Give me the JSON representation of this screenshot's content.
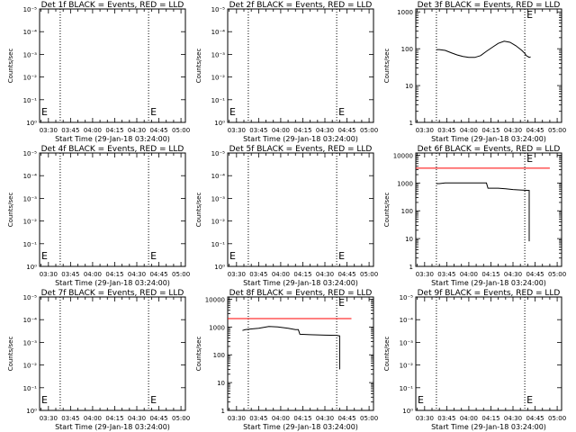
{
  "colors": {
    "events": "#000000",
    "lld": "#ff0000",
    "background": "#ffffff"
  },
  "chart_data": [
    {
      "type": "line",
      "title": "Det 1f BLACK = Events, RED = LLD",
      "xlabel": "Start Time (29-Jan-18 03:24:00)",
      "ylabel": "Counts/sec",
      "scale": "exp",
      "ytick_labels": [
        "10⁰",
        "10⁻¹",
        "10⁻²",
        "10⁻³",
        "10⁻⁴",
        "10⁻⁵"
      ],
      "xtick_labels": [
        "03:30",
        "03:45",
        "04:00",
        "04:15",
        "04:30",
        "04:45",
        "05:00"
      ],
      "dotted_x": [
        "03:38",
        "04:38"
      ],
      "markers": [
        {
          "x": "03:24",
          "label": "E"
        },
        {
          "x": "04:38",
          "label": "E"
        }
      ],
      "events": [],
      "lld": []
    },
    {
      "type": "line",
      "title": "Det 2f BLACK = Events, RED = LLD",
      "xlabel": "Start Time (29-Jan-18 03:24:00)",
      "ylabel": "Counts/sec",
      "scale": "exp",
      "ytick_labels": [
        "10⁰",
        "10⁻¹",
        "10⁻²",
        "10⁻³",
        "10⁻⁴",
        "10⁻⁵"
      ],
      "xtick_labels": [
        "03:30",
        "03:45",
        "04:00",
        "04:15",
        "04:30",
        "04:45",
        "05:00"
      ],
      "dotted_x": [
        "03:38",
        "04:38"
      ],
      "markers": [
        {
          "x": "03:24",
          "label": "E"
        },
        {
          "x": "04:38",
          "label": "E"
        }
      ],
      "events": [],
      "lld": []
    },
    {
      "type": "line",
      "title": "Det 3f BLACK = Events, RED = LLD",
      "xlabel": "Start Time (29-Jan-18 03:24:00)",
      "ylabel": "Counts/sec",
      "scale": "log",
      "ylim": [
        1,
        1200
      ],
      "ytick_values": [
        1,
        10,
        100,
        1000
      ],
      "ytick_labels": [
        "1",
        "10",
        "100",
        "1000"
      ],
      "xtick_labels": [
        "03:30",
        "03:45",
        "04:00",
        "04:15",
        "04:30",
        "04:45",
        "05:00"
      ],
      "dotted_x": [
        "03:38",
        "04:38"
      ],
      "markers": [
        {
          "x": "04:38",
          "label": "E"
        }
      ],
      "events": [
        [
          "03:38",
          95
        ],
        [
          "03:40",
          95
        ],
        [
          "03:44",
          90
        ],
        [
          "03:48",
          78
        ],
        [
          "03:52",
          68
        ],
        [
          "03:56",
          62
        ],
        [
          "04:00",
          58
        ],
        [
          "04:04",
          58
        ],
        [
          "04:08",
          65
        ],
        [
          "04:12",
          85
        ],
        [
          "04:16",
          110
        ],
        [
          "04:20",
          140
        ],
        [
          "04:24",
          160
        ],
        [
          "04:28",
          150
        ],
        [
          "04:32",
          120
        ],
        [
          "04:36",
          90
        ],
        [
          "04:38",
          75
        ],
        [
          "04:39",
          65
        ],
        [
          "04:40",
          62
        ],
        [
          "04:41",
          58
        ],
        [
          "04:42",
          60
        ]
      ],
      "lld": []
    },
    {
      "type": "line",
      "title": "Det 4f BLACK = Events, RED = LLD",
      "xlabel": "Start Time (29-Jan-18 03:24:00)",
      "ylabel": "Counts/sec",
      "scale": "exp",
      "ytick_labels": [
        "10⁰",
        "10⁻¹",
        "10⁻²",
        "10⁻³",
        "10⁻⁴",
        "10⁻⁵"
      ],
      "xtick_labels": [
        "03:30",
        "03:45",
        "04:00",
        "04:15",
        "04:30",
        "04:45",
        "05:00"
      ],
      "dotted_x": [
        "03:38",
        "04:38"
      ],
      "markers": [
        {
          "x": "03:24",
          "label": "E"
        },
        {
          "x": "04:38",
          "label": "E"
        }
      ],
      "events": [],
      "lld": []
    },
    {
      "type": "line",
      "title": "Det 5f BLACK = Events, RED = LLD",
      "xlabel": "Start Time (29-Jan-18 03:24:00)",
      "ylabel": "Counts/sec",
      "scale": "exp",
      "ytick_labels": [
        "10⁰",
        "10⁻¹",
        "10⁻²",
        "10⁻³",
        "10⁻⁴",
        "10⁻⁵"
      ],
      "xtick_labels": [
        "03:30",
        "03:45",
        "04:00",
        "04:15",
        "04:30",
        "04:45",
        "05:00"
      ],
      "dotted_x": [
        "03:38",
        "04:38"
      ],
      "markers": [
        {
          "x": "03:24",
          "label": "E"
        },
        {
          "x": "04:38",
          "label": "E"
        }
      ],
      "events": [],
      "lld": []
    },
    {
      "type": "line",
      "title": "Det 6f BLACK = Events, RED = LLD",
      "xlabel": "Start Time (29-Jan-18 03:24:00)",
      "ylabel": "Counts/sec",
      "scale": "log",
      "ylim": [
        1,
        12000
      ],
      "ytick_values": [
        1,
        10,
        100,
        1000,
        10000
      ],
      "ytick_labels": [
        "1",
        "10",
        "100",
        "1000",
        "10000"
      ],
      "xtick_labels": [
        "03:30",
        "03:45",
        "04:00",
        "04:15",
        "04:30",
        "04:45",
        "05:00"
      ],
      "dotted_x": [
        "03:38",
        "04:38"
      ],
      "markers": [
        {
          "x": "04:38",
          "label": "E"
        }
      ],
      "events": [
        [
          "03:38",
          950
        ],
        [
          "03:40",
          950
        ],
        [
          "03:44",
          1000
        ],
        [
          "03:50",
          1000
        ],
        [
          "04:00",
          1000
        ],
        [
          "04:12",
          1000
        ],
        [
          "04:13",
          650
        ],
        [
          "04:20",
          650
        ],
        [
          "04:25",
          620
        ],
        [
          "04:30",
          580
        ],
        [
          "04:35",
          560
        ],
        [
          "04:41",
          540
        ],
        [
          "04:41",
          8
        ]
      ],
      "lld": [
        [
          "03:24",
          3400
        ],
        [
          "04:55",
          3400
        ]
      ]
    },
    {
      "type": "line",
      "title": "Det 7f BLACK = Events, RED = LLD",
      "xlabel": "Start Time (29-Jan-18 03:24:00)",
      "ylabel": "Counts/sec",
      "scale": "exp",
      "ytick_labels": [
        "10⁰",
        "10⁻¹",
        "10⁻²",
        "10⁻³",
        "10⁻⁴",
        "10⁻⁵"
      ],
      "xtick_labels": [
        "03:30",
        "03:45",
        "04:00",
        "04:15",
        "04:30",
        "04:45",
        "05:00"
      ],
      "dotted_x": [
        "03:38",
        "04:38"
      ],
      "markers": [
        {
          "x": "03:24",
          "label": "E"
        },
        {
          "x": "04:38",
          "label": "E"
        }
      ],
      "events": [],
      "lld": []
    },
    {
      "type": "line",
      "title": "Det 8f BLACK = Events, RED = LLD",
      "xlabel": "Start Time (29-Jan-18 03:24:00)",
      "ylabel": "Counts/sec",
      "scale": "log",
      "ylim": [
        1,
        12000
      ],
      "ytick_values": [
        1,
        10,
        100,
        1000,
        10000
      ],
      "ytick_labels": [
        "1",
        "10",
        "100",
        "1000",
        "10000"
      ],
      "xtick_labels": [
        "03:30",
        "03:45",
        "04:00",
        "04:15",
        "04:30",
        "04:45",
        "05:00"
      ],
      "dotted_x": [
        "03:38",
        "04:38"
      ],
      "markers": [
        {
          "x": "04:38",
          "label": "E"
        }
      ],
      "events": [
        [
          "03:34",
          750
        ],
        [
          "03:36",
          800
        ],
        [
          "03:40",
          850
        ],
        [
          "03:45",
          900
        ],
        [
          "03:52",
          1050
        ],
        [
          "03:58",
          1000
        ],
        [
          "04:05",
          900
        ],
        [
          "04:10",
          800
        ],
        [
          "04:12",
          800
        ],
        [
          "04:13",
          550
        ],
        [
          "04:20",
          530
        ],
        [
          "04:30",
          510
        ],
        [
          "04:38",
          500
        ],
        [
          "04:40",
          480
        ],
        [
          "04:40",
          30
        ]
      ],
      "lld": [
        [
          "03:24",
          2000
        ],
        [
          "04:48",
          2000
        ]
      ]
    },
    {
      "type": "line",
      "title": "Det 9f BLACK = Events, RED = LLD",
      "xlabel": "Start Time (29-Jan-18 03:24:00)",
      "ylabel": "Counts/sec",
      "scale": "exp",
      "ytick_labels": [
        "10⁰",
        "10⁻¹",
        "10⁻²",
        "10⁻³",
        "10⁻⁴",
        "10⁻⁵"
      ],
      "xtick_labels": [
        "03:30",
        "03:45",
        "04:00",
        "04:15",
        "04:30",
        "04:45",
        "05:00"
      ],
      "dotted_x": [
        "03:38",
        "04:38"
      ],
      "markers": [
        {
          "x": "03:24",
          "label": "E"
        },
        {
          "x": "04:38",
          "label": "E"
        }
      ],
      "events": [],
      "lld": []
    }
  ]
}
